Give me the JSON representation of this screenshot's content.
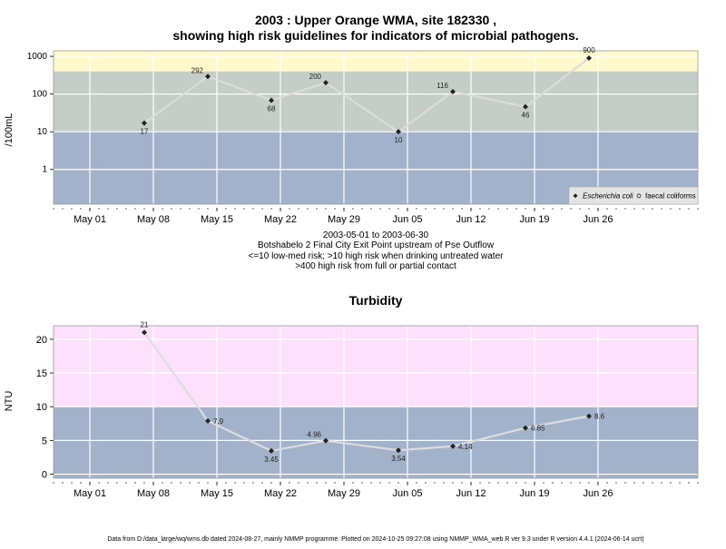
{
  "chart_data": [
    {
      "type": "line",
      "title_line1": "2003 : Upper Orange WMA, site 182330 ,",
      "title_line2": "showing high risk guidelines for indicators of microbial pathogens.",
      "ylabel": "/100mL",
      "y_scale": "log",
      "ylim": [
        0.12,
        1400
      ],
      "yticks": [
        1,
        10,
        100,
        1000
      ],
      "ytick_labels": [
        "1",
        "10",
        "100",
        "1000"
      ],
      "x_range": [
        "2003-04-27",
        "2003-07-07"
      ],
      "x_ticks": [
        "2003-05-01",
        "2003-05-08",
        "2003-05-15",
        "2003-05-22",
        "2003-05-29",
        "2003-06-05",
        "2003-06-12",
        "2003-06-19",
        "2003-06-26"
      ],
      "x_tick_labels": [
        "May 01",
        "May 08",
        "May 15",
        "May 22",
        "May 29",
        "Jun 05",
        "Jun 12",
        "Jun 19",
        "Jun 26"
      ],
      "bands": [
        {
          "from": 0.12,
          "to": 10,
          "color": "#a2b2cb"
        },
        {
          "from": 10,
          "to": 400,
          "color": "#c4cdc6"
        },
        {
          "from": 400,
          "to": 1400,
          "color": "#fff9cc"
        }
      ],
      "series": [
        {
          "name": "Escherichia coli",
          "x": [
            "2003-05-07",
            "2003-05-14",
            "2003-05-21",
            "2003-05-27",
            "2003-06-04",
            "2003-06-10",
            "2003-06-18",
            "2003-06-25"
          ],
          "values": [
            17,
            292,
            68,
            200,
            10,
            116,
            46,
            900
          ],
          "labels": [
            "17",
            "292",
            "68",
            "200",
            "10",
            "116",
            "46",
            "900"
          ]
        }
      ],
      "legend": {
        "position": "bottom-right",
        "entries": [
          "Escherichia coli",
          "faecal coliforms"
        ]
      },
      "caption": [
        "2003-05-01 to 2003-06-30",
        "Botshabelo 2 Final City Exit Point upstream of Pse Outflow",
        "<=10 low-med risk; >10 high risk when drinking untreated water",
        ">400 high risk from full or partial contact"
      ]
    },
    {
      "type": "line",
      "title": "Turbidity",
      "ylabel": "NTU",
      "ylim": [
        -0.6,
        22
      ],
      "yticks": [
        0,
        5,
        10,
        15,
        20
      ],
      "ytick_labels": [
        "0",
        "5",
        "10",
        "15",
        "20"
      ],
      "x_range": [
        "2003-04-27",
        "2003-07-07"
      ],
      "x_ticks": [
        "2003-05-01",
        "2003-05-08",
        "2003-05-15",
        "2003-05-22",
        "2003-05-29",
        "2003-06-05",
        "2003-06-12",
        "2003-06-19",
        "2003-06-26"
      ],
      "x_tick_labels": [
        "May 01",
        "May 08",
        "May 15",
        "May 22",
        "May 29",
        "Jun 05",
        "Jun 12",
        "Jun 19",
        "Jun 26"
      ],
      "bands": [
        {
          "from": -0.6,
          "to": 10,
          "color": "#a2b2cb"
        },
        {
          "from": 10,
          "to": 22,
          "color": "#fce0fc"
        }
      ],
      "series": [
        {
          "name": "Turbidity",
          "x": [
            "2003-05-07",
            "2003-05-14",
            "2003-05-21",
            "2003-05-27",
            "2003-06-04",
            "2003-06-10",
            "2003-06-18",
            "2003-06-25"
          ],
          "values": [
            21,
            7.9,
            3.45,
            4.96,
            3.54,
            4.14,
            6.85,
            8.6
          ],
          "labels": [
            "21",
            "7.9",
            "3.45",
            "4.96",
            "3.54",
            "4.14",
            "6.85",
            "8.6"
          ]
        }
      ]
    }
  ],
  "footer": "Data from D:/data_large/wq/wms.db dated 2024-08-27, mainly NMMP programme. Plotted on 2024-10-25 09:27:08 using NMMP_WMA_web.R ver 9.3 under R version 4.4.1 (2024-06-14 ucrt)"
}
